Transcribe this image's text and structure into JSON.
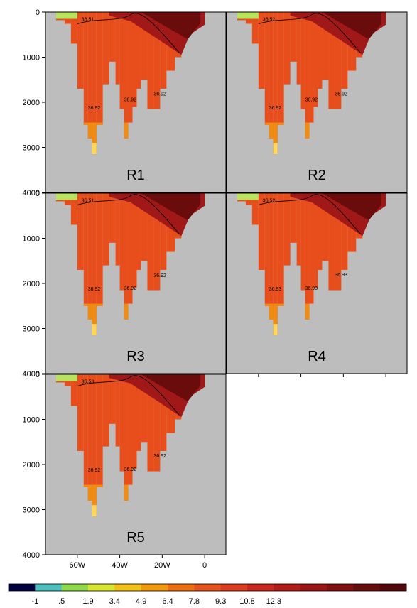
{
  "chart_data": {
    "type": "heatmap",
    "description_of_axes": {
      "x_ticks": [
        "60W",
        "40W",
        "20W",
        "0"
      ],
      "x_tick_values": [
        -60,
        -40,
        -20,
        0
      ],
      "xlim": [
        -75,
        10
      ],
      "y_ticks": [
        "0",
        "1000",
        "2000",
        "3000",
        "4000"
      ],
      "y_tick_values": [
        0,
        1000,
        2000,
        3000,
        4000
      ],
      "ylim": [
        4000,
        0
      ]
    },
    "colorbar": {
      "labels": [
        "-1",
        ".5",
        "1.9",
        "3.4",
        "4.9",
        "6.4",
        "7.8",
        "9.3",
        "10.8",
        "12.3"
      ],
      "colors": [
        "#000040",
        "#4dbfbf",
        "#8fd94d",
        "#d9e633",
        "#f2c21a",
        "#f29a0f",
        "#ec7012",
        "#e4521e",
        "#d93c20",
        "#c8281e",
        "#b01c18",
        "#991414",
        "#801010",
        "#660c0c",
        "#52080a"
      ]
    },
    "colors": {
      "land": "#bdbdbd",
      "shallow": "#ffd75a",
      "surface_cold": "#b8e35c",
      "mid": "#e84e1c",
      "deep": "#f08c12"
    },
    "panels": [
      {
        "label": "R1",
        "contours": [
          {
            "text": "36.51",
            "x": -58,
            "y": 200
          },
          {
            "text": "36.92",
            "x": -55,
            "y": 2160
          },
          {
            "text": "36.92",
            "x": -38,
            "y": 1980
          },
          {
            "text": "36.92",
            "x": -24,
            "y": 1850
          }
        ]
      },
      {
        "label": "R2",
        "contours": [
          {
            "text": "36.52",
            "x": -58,
            "y": 200
          },
          {
            "text": "36.92",
            "x": -55,
            "y": 2160
          },
          {
            "text": "36.92",
            "x": -38,
            "y": 1980
          },
          {
            "text": "36.92",
            "x": -24,
            "y": 1850
          }
        ]
      },
      {
        "label": "R3",
        "contours": [
          {
            "text": "36.51",
            "x": -58,
            "y": 200
          },
          {
            "text": "36.92",
            "x": -55,
            "y": 2160
          },
          {
            "text": "36.92",
            "x": -38,
            "y": 2140
          },
          {
            "text": "36.92",
            "x": -24,
            "y": 1860
          }
        ]
      },
      {
        "label": "R4",
        "contours": [
          {
            "text": "36.52",
            "x": -58,
            "y": 200
          },
          {
            "text": "36.93",
            "x": -55,
            "y": 2160
          },
          {
            "text": "36.93",
            "x": -38,
            "y": 2140
          },
          {
            "text": "36.93",
            "x": -24,
            "y": 1840
          }
        ]
      },
      {
        "label": "R5",
        "contours": [
          {
            "text": "36.53",
            "x": -58,
            "y": 200
          },
          {
            "text": "36.92",
            "x": -55,
            "y": 2160
          },
          {
            "text": "36.92",
            "x": -38,
            "y": 2140
          },
          {
            "text": "36.92",
            "x": -24,
            "y": 1840
          }
        ]
      }
    ]
  }
}
